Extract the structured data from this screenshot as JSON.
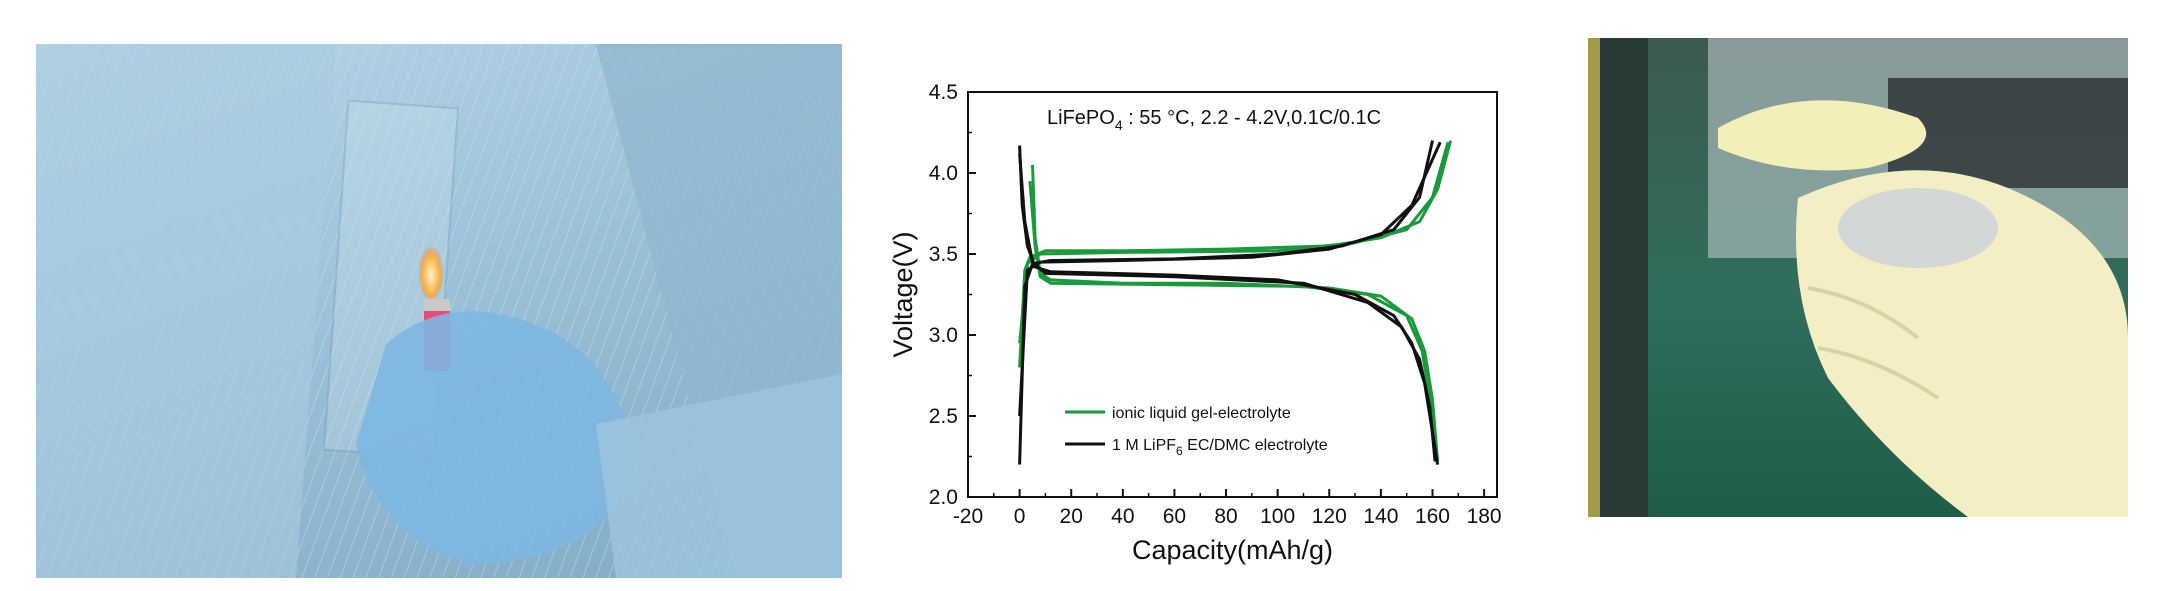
{
  "chart_data": {
    "type": "line",
    "title_main": "LiFePO",
    "title_sub": "4",
    "title_rest": " : 55 °C, 2.2 - 4.2V,0.1C/0.1C",
    "xlabel": "Capacity(mAh/g)",
    "ylabel": "Voltage(V)",
    "xlim": [
      -20,
      185
    ],
    "ylim": [
      2.0,
      4.5
    ],
    "xticks": [
      -20,
      0,
      20,
      40,
      60,
      80,
      100,
      120,
      140,
      160,
      180
    ],
    "yticks": [
      "2.0",
      "2.5",
      "3.0",
      "3.5",
      "4.0",
      "4.5"
    ],
    "legend_position": "lower-center",
    "series": [
      {
        "name": "ionic liquid gel-electrolyte",
        "color": "#1a9a3c",
        "curves": [
          [
            [
              0,
              2.8
            ],
            [
              2,
              3.4
            ],
            [
              4,
              3.48
            ],
            [
              10,
              3.52
            ],
            [
              40,
              3.52
            ],
            [
              80,
              3.53
            ],
            [
              120,
              3.55
            ],
            [
              140,
              3.6
            ],
            [
              155,
              3.7
            ],
            [
              162,
              3.9
            ],
            [
              167,
              4.2
            ]
          ],
          [
            [
              0,
              2.95
            ],
            [
              3,
              3.44
            ],
            [
              8,
              3.5
            ],
            [
              40,
              3.51
            ],
            [
              100,
              3.52
            ],
            [
              130,
              3.57
            ],
            [
              150,
              3.65
            ],
            [
              160,
              3.85
            ],
            [
              166,
              4.19
            ]
          ],
          [
            [
              5,
              4.05
            ],
            [
              6,
              3.6
            ],
            [
              8,
              3.38
            ],
            [
              12,
              3.34
            ],
            [
              40,
              3.32
            ],
            [
              80,
              3.32
            ],
            [
              120,
              3.29
            ],
            [
              140,
              3.24
            ],
            [
              152,
              3.1
            ],
            [
              157,
              2.9
            ],
            [
              160,
              2.6
            ],
            [
              162,
              2.22
            ]
          ],
          [
            [
              4,
              3.95
            ],
            [
              6,
              3.55
            ],
            [
              8,
              3.36
            ],
            [
              12,
              3.32
            ],
            [
              60,
              3.31
            ],
            [
              110,
              3.3
            ],
            [
              135,
              3.25
            ],
            [
              150,
              3.12
            ],
            [
              156,
              2.9
            ],
            [
              159,
              2.6
            ],
            [
              161,
              2.22
            ]
          ]
        ]
      },
      {
        "name": "1 M LiPF",
        "name_sub": "6",
        "name_rest": " EC/DMC electrolyte",
        "color": "#111111",
        "curves": [
          [
            [
              0,
              2.2
            ],
            [
              2,
              3.3
            ],
            [
              5,
              3.44
            ],
            [
              12,
              3.46
            ],
            [
              60,
              3.47
            ],
            [
              100,
              3.5
            ],
            [
              125,
              3.55
            ],
            [
              145,
              3.65
            ],
            [
              155,
              3.85
            ],
            [
              160,
              4.2
            ]
          ],
          [
            [
              0,
              2.5
            ],
            [
              3,
              3.4
            ],
            [
              8,
              3.45
            ],
            [
              40,
              3.46
            ],
            [
              90,
              3.48
            ],
            [
              120,
              3.53
            ],
            [
              140,
              3.62
            ],
            [
              152,
              3.8
            ],
            [
              163,
              4.19
            ]
          ],
          [
            [
              0,
              4.17
            ],
            [
              1,
              3.8
            ],
            [
              3,
              3.55
            ],
            [
              6,
              3.42
            ],
            [
              12,
              3.39
            ],
            [
              60,
              3.37
            ],
            [
              100,
              3.34
            ],
            [
              130,
              3.25
            ],
            [
              145,
              3.12
            ],
            [
              152,
              2.95
            ],
            [
              157,
              2.7
            ],
            [
              160,
              2.4
            ],
            [
              162,
              2.2
            ]
          ],
          [
            [
              0,
              4.12
            ],
            [
              2,
              3.7
            ],
            [
              5,
              3.45
            ],
            [
              10,
              3.38
            ],
            [
              60,
              3.36
            ],
            [
              110,
              3.32
            ],
            [
              135,
              3.2
            ],
            [
              148,
              3.05
            ],
            [
              155,
              2.85
            ],
            [
              159,
              2.55
            ],
            [
              161,
              2.22
            ]
          ]
        ]
      }
    ]
  }
}
